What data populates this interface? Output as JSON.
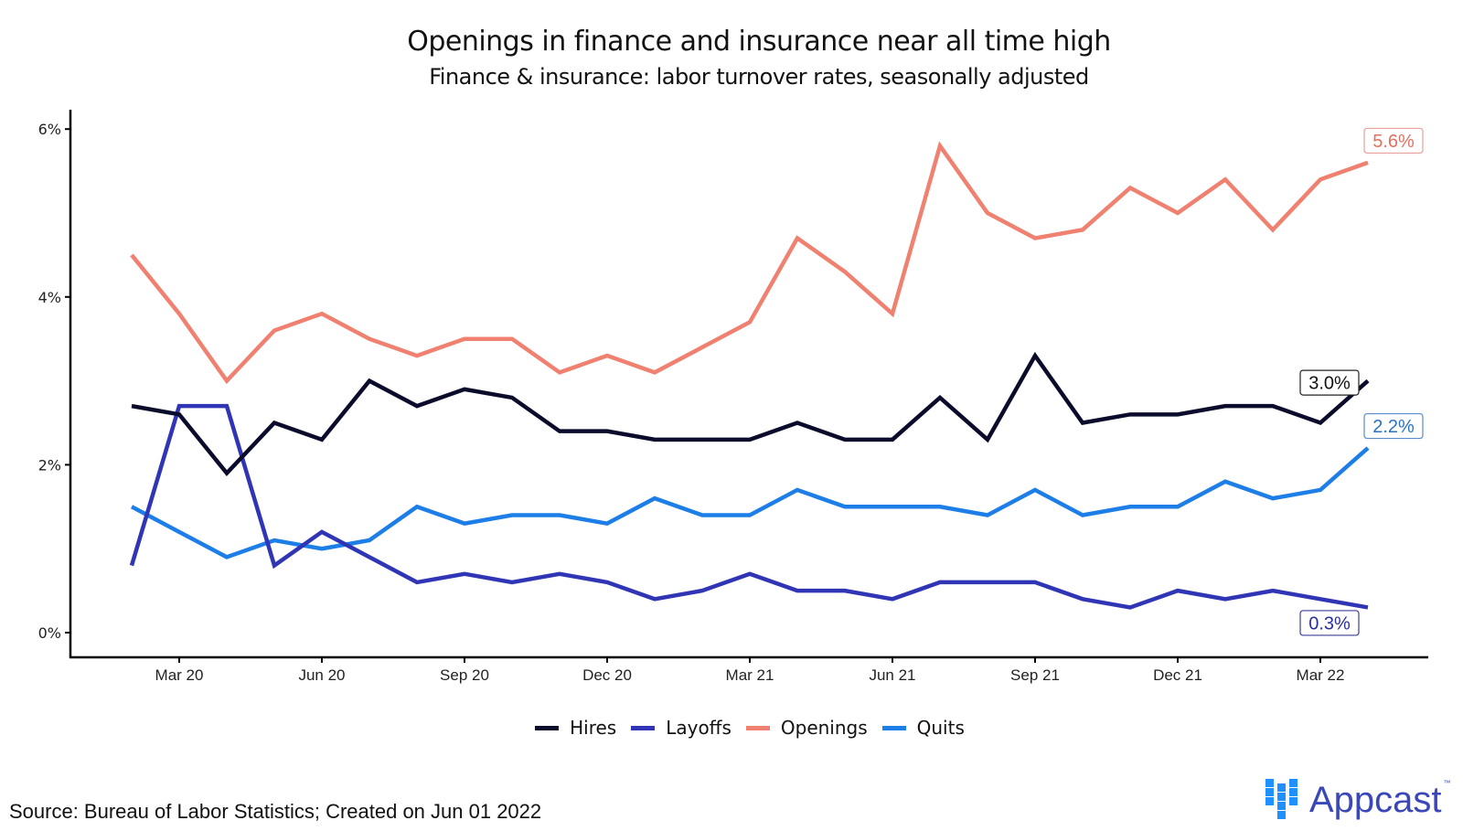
{
  "chart_data": {
    "type": "line",
    "title": "Openings in finance and insurance near all time high",
    "subtitle": "Finance & insurance: labor turnover rates, seasonally adjusted",
    "xlabel": "",
    "ylabel": "",
    "x": [
      "Feb 20",
      "Mar 20",
      "Apr 20",
      "May 20",
      "Jun 20",
      "Jul 20",
      "Aug 20",
      "Sep 20",
      "Oct 20",
      "Nov 20",
      "Dec 20",
      "Jan 21",
      "Feb 21",
      "Mar 21",
      "Apr 21",
      "May 21",
      "Jun 21",
      "Jul 21",
      "Aug 21",
      "Sep 21",
      "Oct 21",
      "Nov 21",
      "Dec 21",
      "Jan 22",
      "Feb 22",
      "Mar 22",
      "Apr 22"
    ],
    "x_ticks": [
      "Mar 20",
      "Jun 20",
      "Sep 20",
      "Dec 20",
      "Mar 21",
      "Jun 21",
      "Sep 21",
      "Dec 21",
      "Mar 22"
    ],
    "y_ticks": [
      "0%",
      "2%",
      "4%",
      "6%"
    ],
    "y_tick_values": [
      0,
      2,
      4,
      6
    ],
    "ylim": [
      -0.3,
      6.2
    ],
    "grid": false,
    "legend_position": "bottom",
    "series": [
      {
        "name": "Hires",
        "color": "#0b0b2b",
        "end_label": "3.0%",
        "values": [
          2.7,
          2.6,
          1.9,
          2.5,
          2.3,
          3.0,
          2.7,
          2.9,
          2.8,
          2.4,
          2.4,
          2.3,
          2.3,
          2.3,
          2.5,
          2.3,
          2.3,
          2.8,
          2.3,
          3.3,
          2.5,
          2.6,
          2.6,
          2.7,
          2.7,
          2.5,
          3.0
        ]
      },
      {
        "name": "Layoffs",
        "color": "#2f35b5",
        "end_label": "0.3%",
        "values": [
          0.8,
          2.7,
          2.7,
          0.8,
          1.2,
          0.9,
          0.6,
          0.7,
          0.6,
          0.7,
          0.6,
          0.4,
          0.5,
          0.7,
          0.5,
          0.5,
          0.4,
          0.6,
          0.6,
          0.6,
          0.4,
          0.3,
          0.5,
          0.4,
          0.5,
          0.4,
          0.3
        ]
      },
      {
        "name": "Openings",
        "color": "#f08070",
        "end_label": "5.6%",
        "values": [
          4.5,
          3.8,
          3.0,
          3.6,
          3.8,
          3.5,
          3.3,
          3.5,
          3.5,
          3.1,
          3.3,
          3.1,
          3.4,
          3.7,
          4.7,
          4.3,
          3.8,
          5.8,
          5.0,
          4.7,
          4.8,
          5.3,
          5.0,
          5.4,
          4.8,
          5.4,
          5.6
        ]
      },
      {
        "name": "Quits",
        "color": "#1e7ee8",
        "end_label": "2.2%",
        "values": [
          1.5,
          1.2,
          0.9,
          1.1,
          1.0,
          1.1,
          1.5,
          1.3,
          1.4,
          1.4,
          1.3,
          1.6,
          1.4,
          1.4,
          1.7,
          1.5,
          1.5,
          1.5,
          1.4,
          1.7,
          1.4,
          1.5,
          1.5,
          1.8,
          1.6,
          1.7,
          2.2
        ]
      }
    ]
  },
  "footer": {
    "source": "Source: Bureau of Labor Statistics; Created on Jun 01 2022",
    "logo_text": "Appcast",
    "logo_tm": "™"
  }
}
